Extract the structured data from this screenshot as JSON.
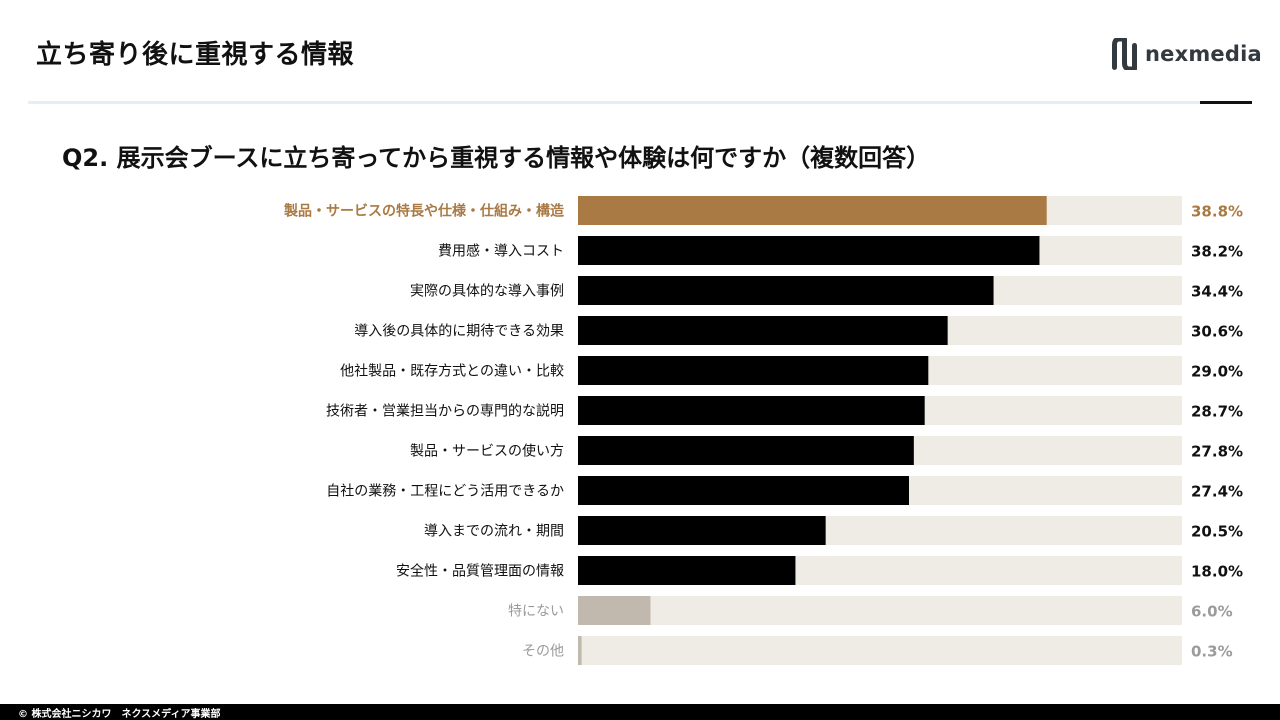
{
  "header": {
    "title": "立ち寄り後に重視する情報"
  },
  "logo": {
    "text": "nexmedia",
    "icon": "nexmedia-logo-mark"
  },
  "question": "Q2. 展示会ブースに立ち寄ってから重視する情報や体験は何ですか（複数回答）",
  "footer": {
    "copyright": "© 株式会社ニシカワ　ネクスメディア事業部"
  },
  "colors": {
    "highlight": "#a97a44",
    "bar": "#000000",
    "muted_bar": "#c1b9ae",
    "track": "#efebe5",
    "muted_text": "#9b9b9b"
  },
  "chart_data": {
    "type": "bar",
    "orientation": "horizontal",
    "categories": [
      "製品・サービスの特長や仕様・仕組み・構造",
      "費用感・導入コスト",
      "実際の具体的な導入事例",
      "導入後の具体的に期待できる効果",
      "他社製品・既存方式との違い・比較",
      "技術者・営業担当からの専門的な説明",
      "製品・サービスの使い方",
      "自社の業務・工程にどう活用できるか",
      "導入までの流れ・期間",
      "安全性・品質管理面の情報",
      "特にない",
      "その他"
    ],
    "values": [
      38.8,
      38.2,
      34.4,
      30.6,
      29.0,
      28.7,
      27.8,
      27.4,
      20.5,
      18.0,
      6.0,
      0.3
    ],
    "value_labels": [
      "38.8%",
      "38.2%",
      "34.4%",
      "30.6%",
      "29.0%",
      "28.7%",
      "27.8%",
      "27.4%",
      "20.5%",
      "18.0%",
      "6.0%",
      "0.3%"
    ],
    "styles": [
      "highlight",
      "default",
      "default",
      "default",
      "default",
      "default",
      "default",
      "default",
      "default",
      "default",
      "muted",
      "muted"
    ],
    "xlim": [
      0,
      50
    ],
    "grid": false,
    "legend": "none"
  }
}
